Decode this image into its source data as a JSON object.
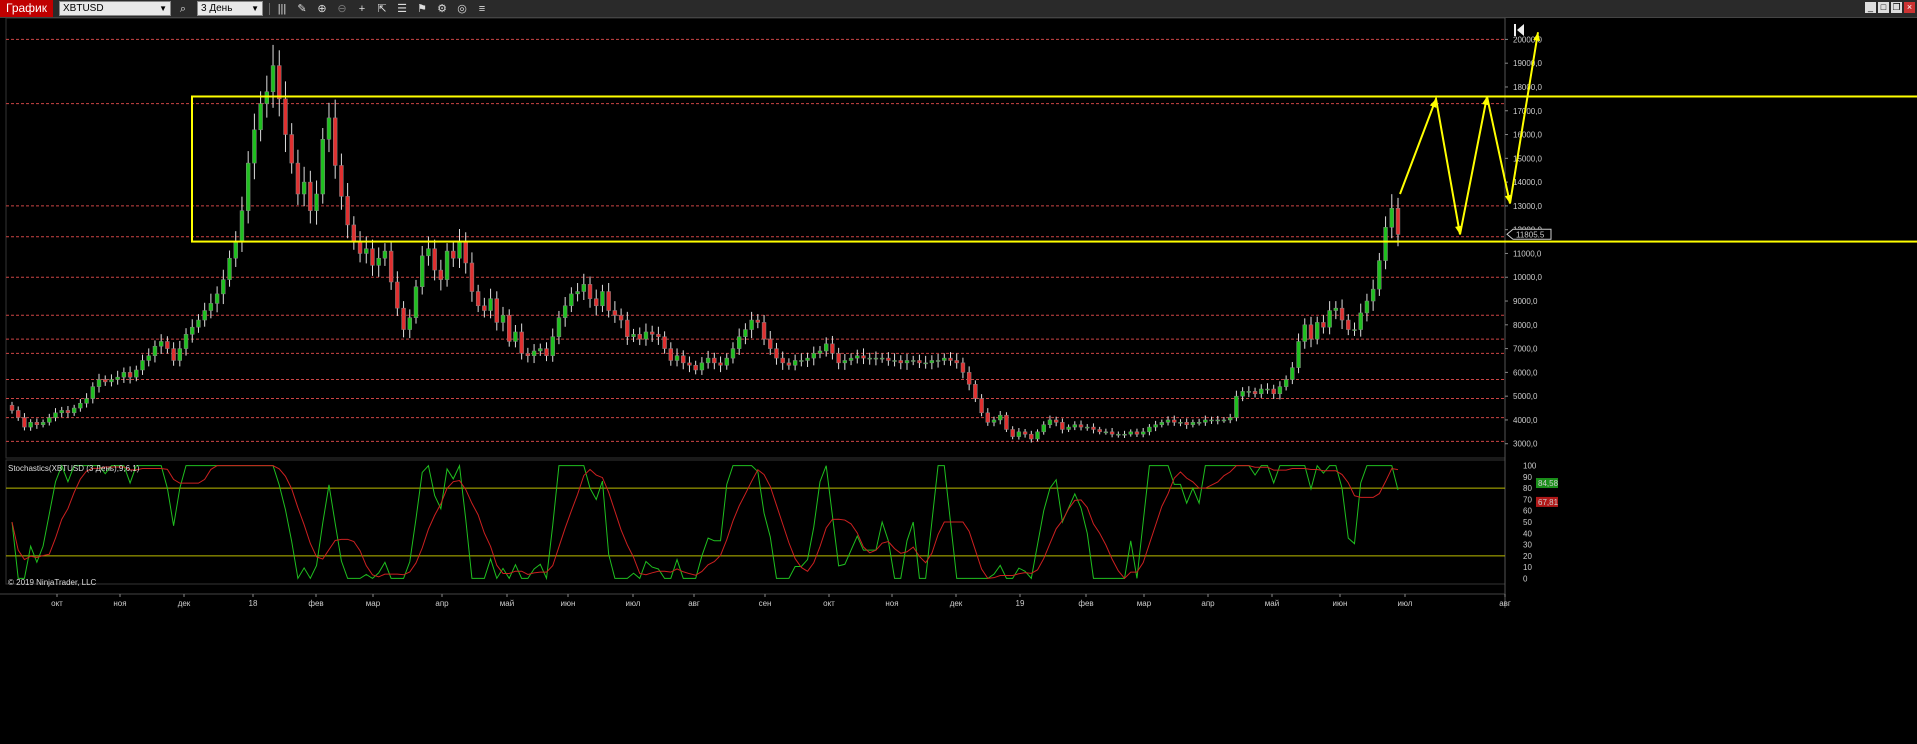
{
  "toolbar": {
    "title": "График",
    "symbol": "XBTUSD",
    "interval": "3 День"
  },
  "indicator_label": "Stochastics(XBTUSD (3 День),9,6,1)",
  "copyright": "© 2019 NinjaTrader, LLC",
  "colors": {
    "up": "#1fbf1f",
    "down": "#e03030",
    "box": "#ffff00",
    "stoch_k": "#1fbf1f",
    "stoch_d": "#cc2020",
    "grid": "#cc4444"
  },
  "chart_data": [
    {
      "type": "candlestick",
      "y_ticks": [
        "20000,0",
        "19000,0",
        "18000,0",
        "17000,0",
        "16000,0",
        "15000,0",
        "14000,0",
        "13000,0",
        "12000,0",
        "11000,0",
        "10000,0",
        "9000,0",
        "8000,0",
        "7000,0",
        "6000,0",
        "5000,0",
        "4000,0",
        "3000,0"
      ],
      "ylim": [
        2400,
        20900
      ],
      "x_ticks": [
        "окт",
        "ноя",
        "дек",
        "18",
        "фев",
        "мар",
        "апр",
        "май",
        "июн",
        "июл",
        "авг",
        "сен",
        "окт",
        "ноя",
        "дек",
        "19",
        "фев",
        "мар",
        "апр",
        "май",
        "июн",
        "июл",
        "авг"
      ],
      "current_price": "11805.5",
      "horizontal_levels": [
        20000,
        17300,
        13000,
        11700,
        10000,
        8400,
        7400,
        6800,
        5700,
        4900,
        4100,
        3100
      ],
      "box": {
        "y_top": 17600,
        "y_bottom": 11500
      },
      "closes": [
        4400,
        4100,
        3700,
        3900,
        3800,
        3900,
        4100,
        4300,
        4400,
        4300,
        4500,
        4700,
        4900,
        5400,
        5700,
        5600,
        5700,
        5800,
        6000,
        5800,
        6100,
        6500,
        6700,
        7100,
        7300,
        7000,
        6500,
        7000,
        7600,
        7900,
        8200,
        8600,
        8900,
        9300,
        9900,
        10800,
        11500,
        12800,
        14800,
        16200,
        17300,
        17800,
        18900,
        17500,
        16000,
        14800,
        13500,
        14000,
        12800,
        13500,
        15800,
        16700,
        14700,
        13400,
        12200,
        11500,
        11000,
        11200,
        10500,
        10800,
        11100,
        9800,
        8700,
        7800,
        8300,
        9600,
        10900,
        11200,
        10300,
        9900,
        11100,
        10800,
        11500,
        10600,
        9400,
        8800,
        8600,
        9100,
        8100,
        8400,
        7300,
        7700,
        6800,
        6700,
        6900,
        7000,
        6700,
        7500,
        8300,
        8800,
        9300,
        9400,
        9700,
        9100,
        8800,
        9400,
        8600,
        8400,
        8200,
        7500,
        7600,
        7400,
        7700,
        7600,
        7500,
        7000,
        6500,
        6700,
        6400,
        6300,
        6100,
        6400,
        6600,
        6400,
        6300,
        6600,
        7000,
        7500,
        7800,
        8200,
        8100,
        7400,
        7000,
        6600,
        6400,
        6300,
        6500,
        6500,
        6600,
        6800,
        6900,
        7200,
        6800,
        6400,
        6500,
        6600,
        6700,
        6600,
        6600,
        6600,
        6600,
        6500,
        6500,
        6400,
        6500,
        6500,
        6400,
        6400,
        6500,
        6500,
        6600,
        6500,
        6400,
        6000,
        5500,
        4900,
        4300,
        3900,
        4000,
        4200,
        3600,
        3300,
        3500,
        3400,
        3200,
        3500,
        3800,
        4000,
        3900,
        3600,
        3700,
        3800,
        3700,
        3700,
        3600,
        3500,
        3500,
        3400,
        3400,
        3400,
        3500,
        3400,
        3500,
        3700,
        3800,
        3900,
        4000,
        3900,
        3900,
        3800,
        3900,
        3900,
        4000,
        4000,
        4000,
        4000,
        4100,
        5000,
        5200,
        5200,
        5100,
        5300,
        5300,
        5100,
        5400,
        5700,
        6200,
        7300,
        8000,
        7400,
        8100,
        7900,
        8600,
        8700,
        8200,
        7800,
        7800,
        8500,
        9000,
        9500,
        10700,
        12100,
        12900,
        11800
      ]
    },
    {
      "type": "line",
      "title": "Stochastics(XBTUSD (3 День),9,6,1)",
      "y_ticks": [
        "100",
        "90",
        "80",
        "70",
        "60",
        "50",
        "40",
        "30",
        "20",
        "10",
        "0"
      ],
      "ylim": [
        -5,
        105
      ],
      "levels": [
        20,
        80
      ],
      "last_k": "84,58",
      "last_d": "67,81"
    }
  ]
}
